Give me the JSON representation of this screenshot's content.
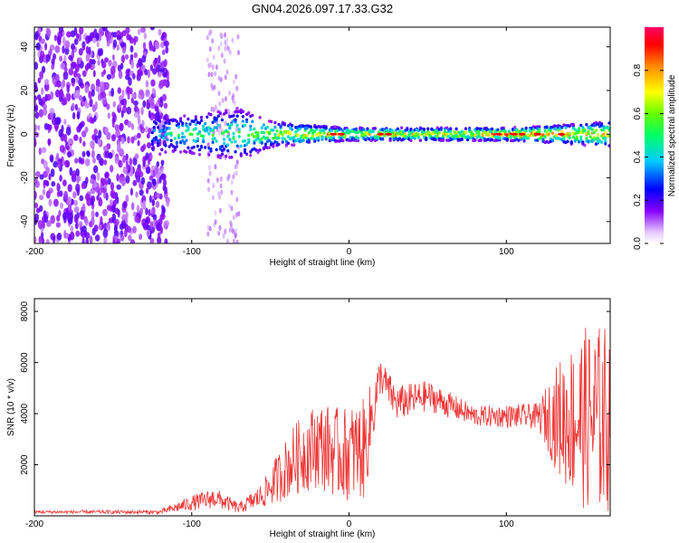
{
  "title": "GN04.2026.097.17.33.G32",
  "chart_data": [
    {
      "type": "heatmap",
      "title": "GN04.2026.097.17.33.G32",
      "xlabel": "Height of straight line (km)",
      "ylabel": "Frequency (Hz)",
      "xlim": [
        -200,
        166
      ],
      "ylim": [
        -50,
        49
      ],
      "xticks": [
        "-200",
        "-100",
        "0",
        "100"
      ],
      "yticks": [
        "-40",
        "-20",
        "0",
        "20",
        "40"
      ],
      "colorbar": {
        "label": "Normalized spectral amplitude",
        "range": [
          0,
          1
        ],
        "ticks": [
          "0.0",
          "0.2",
          "0.4",
          "0.6",
          "0.8"
        ]
      },
      "band_profile": [
        {
          "x": -200,
          "halfwidth": 45,
          "intensity": 0.15
        },
        {
          "x": -125,
          "halfwidth": 10,
          "intensity": 0.2
        },
        {
          "x": -110,
          "halfwidth": 8,
          "intensity": 0.35
        },
        {
          "x": -70,
          "halfwidth": 12,
          "intensity": 0.4
        },
        {
          "x": -50,
          "halfwidth": 6,
          "intensity": 0.5
        },
        {
          "x": -20,
          "halfwidth": 4,
          "intensity": 0.6
        },
        {
          "x": 0,
          "halfwidth": 3,
          "intensity": 0.6
        },
        {
          "x": 50,
          "halfwidth": 3,
          "intensity": 0.55
        },
        {
          "x": 100,
          "halfwidth": 3,
          "intensity": 0.7
        },
        {
          "x": 130,
          "halfwidth": 4,
          "intensity": 0.7
        },
        {
          "x": 166,
          "halfwidth": 6,
          "intensity": 0.6
        }
      ]
    },
    {
      "type": "line",
      "xlabel": "Height of straight line (km)",
      "ylabel": "SNR (10 * v/v)",
      "xlim": [
        -200,
        166
      ],
      "ylim": [
        0,
        8500
      ],
      "xticks": [
        "-200",
        "-100",
        "0",
        "100"
      ],
      "yticks": [
        "2000",
        "4000",
        "6000",
        "8000"
      ],
      "series": [
        {
          "name": "SNR",
          "color": "#ee3333",
          "envelope": [
            {
              "x": -200,
              "mean": 150,
              "amp": 60
            },
            {
              "x": -120,
              "mean": 150,
              "amp": 80
            },
            {
              "x": -100,
              "mean": 500,
              "amp": 300
            },
            {
              "x": -85,
              "mean": 700,
              "amp": 400
            },
            {
              "x": -70,
              "mean": 300,
              "amp": 200
            },
            {
              "x": -55,
              "mean": 800,
              "amp": 500
            },
            {
              "x": -45,
              "mean": 1500,
              "amp": 1000
            },
            {
              "x": -35,
              "mean": 2200,
              "amp": 1400
            },
            {
              "x": -20,
              "mean": 2800,
              "amp": 1700
            },
            {
              "x": -5,
              "mean": 2400,
              "amp": 1800
            },
            {
              "x": 10,
              "mean": 2600,
              "amp": 2000
            },
            {
              "x": 20,
              "mean": 5500,
              "amp": 700
            },
            {
              "x": 30,
              "mean": 4400,
              "amp": 700
            },
            {
              "x": 50,
              "mean": 4700,
              "amp": 600
            },
            {
              "x": 80,
              "mean": 3900,
              "amp": 400
            },
            {
              "x": 120,
              "mean": 3900,
              "amp": 500
            },
            {
              "x": 135,
              "mean": 3800,
              "amp": 2500
            },
            {
              "x": 150,
              "mean": 3800,
              "amp": 3600
            },
            {
              "x": 166,
              "mean": 3800,
              "amp": 3800
            }
          ]
        }
      ]
    }
  ]
}
